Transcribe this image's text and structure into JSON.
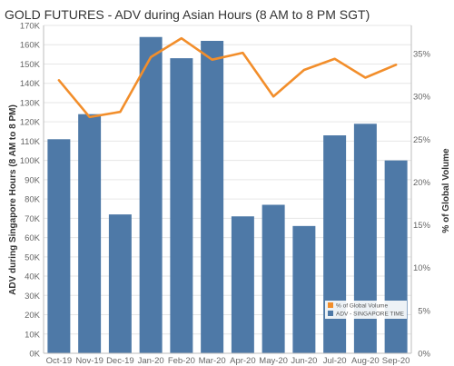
{
  "colors": {
    "bar": "#4e79a7",
    "line": "#f28e2b",
    "grid": "#e6e6e6",
    "axis": "#bdbdbd"
  },
  "chart_data": {
    "type": "bar",
    "title": "GOLD FUTURES - ADV during Asian Hours (8 AM to 8 PM SGT)",
    "ylabel": "ADV during Singapore Hours (8 AM to 8 PM)",
    "y2label": "% of Global Volume",
    "categories": [
      "Oct-19",
      "Nov-19",
      "Dec-19",
      "Jan-20",
      "Feb-20",
      "Mar-20",
      "Apr-20",
      "May-20",
      "Jun-20",
      "Jul-20",
      "Aug-20",
      "Sep-20"
    ],
    "ylim": [
      0,
      170000
    ],
    "y_ticks": [
      0,
      10000,
      20000,
      30000,
      40000,
      50000,
      60000,
      70000,
      80000,
      90000,
      100000,
      110000,
      120000,
      130000,
      140000,
      150000,
      160000,
      170000
    ],
    "y_tick_labels": [
      "0K",
      "10K",
      "20K",
      "30K",
      "40K",
      "50K",
      "60K",
      "70K",
      "80K",
      "90K",
      "100K",
      "110K",
      "120K",
      "130K",
      "140K",
      "150K",
      "160K",
      "170K"
    ],
    "y2lim": [
      0,
      38.3
    ],
    "y2_ticks": [
      0,
      5,
      10,
      15,
      20,
      25,
      30,
      35
    ],
    "y2_tick_labels": [
      "0%",
      "5%",
      "10%",
      "15%",
      "20%",
      "25%",
      "30%",
      "35%"
    ],
    "legend_position": "bottom-right",
    "series": [
      {
        "name": "ADV - SINGAPORE TIME",
        "kind": "bar",
        "axis": "left",
        "values": [
          111000,
          124000,
          72000,
          164000,
          153000,
          162000,
          71000,
          77000,
          66000,
          113000,
          119000,
          100000
        ]
      },
      {
        "name": "% of Global Volume",
        "kind": "line",
        "axis": "right",
        "values": [
          31.9,
          27.6,
          28.2,
          34.6,
          36.8,
          34.3,
          35.1,
          30.0,
          33.1,
          34.4,
          32.2,
          33.7
        ]
      }
    ]
  }
}
